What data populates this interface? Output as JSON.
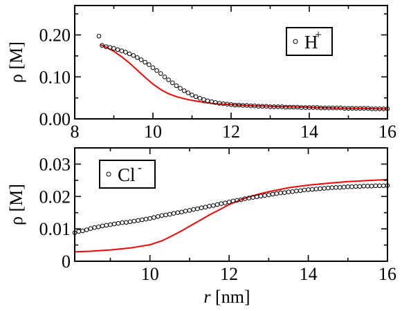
{
  "chart_data": [
    {
      "type": "scatter",
      "title": "",
      "xlabel": "",
      "ylabel": "ρ [M]",
      "xlim": [
        8,
        16
      ],
      "ylim": [
        0,
        0.27
      ],
      "xticks": [
        "8",
        "10",
        "12",
        "14",
        "16"
      ],
      "yticks": [
        "0.00",
        "0.10",
        "0.20"
      ],
      "legend": {
        "label": "H",
        "superscript": "+",
        "placement": "top-right"
      },
      "colors": {
        "markers": "#000000",
        "fit": "#ff0000"
      },
      "series": [
        {
          "name": "H+",
          "style": "open-circle",
          "x": [
            8.62,
            8.7,
            8.8,
            8.9,
            9.0,
            9.1,
            9.2,
            9.3,
            9.4,
            9.5,
            9.6,
            9.7,
            9.8,
            9.9,
            10.0,
            10.1,
            10.2,
            10.3,
            10.4,
            10.5,
            10.6,
            10.7,
            10.8,
            10.9,
            11.0,
            11.1,
            11.2,
            11.3,
            11.4,
            11.5,
            11.6,
            11.7,
            11.8,
            11.9,
            12.0,
            12.1,
            12.2,
            12.3,
            12.4,
            12.5,
            12.6,
            12.7,
            12.8,
            12.9,
            13.0,
            13.1,
            13.2,
            13.3,
            13.4,
            13.5,
            13.6,
            13.7,
            13.8,
            13.9,
            14.0,
            14.1,
            14.2,
            14.3,
            14.4,
            14.5,
            14.6,
            14.7,
            14.8,
            14.9,
            15.0,
            15.1,
            15.2,
            15.3,
            15.4,
            15.5,
            15.6,
            15.7,
            15.8,
            15.9,
            16.0
          ],
          "y": [
            0.197,
            0.175,
            0.172,
            0.17,
            0.168,
            0.165,
            0.162,
            0.159,
            0.155,
            0.151,
            0.146,
            0.141,
            0.135,
            0.129,
            0.122,
            0.115,
            0.108,
            0.1,
            0.093,
            0.086,
            0.079,
            0.073,
            0.067,
            0.062,
            0.057,
            0.053,
            0.049,
            0.046,
            0.043,
            0.041,
            0.039,
            0.037,
            0.036,
            0.035,
            0.034,
            0.033,
            0.033,
            0.032,
            0.032,
            0.031,
            0.031,
            0.03,
            0.03,
            0.03,
            0.029,
            0.029,
            0.029,
            0.029,
            0.028,
            0.028,
            0.028,
            0.028,
            0.027,
            0.027,
            0.027,
            0.027,
            0.027,
            0.026,
            0.026,
            0.026,
            0.026,
            0.026,
            0.026,
            0.025,
            0.025,
            0.025,
            0.025,
            0.025,
            0.025,
            0.025,
            0.024,
            0.024,
            0.024,
            0.024,
            0.024
          ]
        },
        {
          "name": "fit",
          "style": "line",
          "x": [
            8.65,
            8.8,
            9.0,
            9.2,
            9.4,
            9.6,
            9.8,
            10.0,
            10.2,
            10.4,
            10.6,
            10.8,
            11.0,
            11.2,
            11.4,
            11.6,
            11.8,
            12.0,
            12.2,
            12.4,
            12.6,
            12.8,
            13.0,
            13.4,
            13.8,
            14.2,
            14.6,
            15.0,
            15.4,
            15.8,
            16.0
          ],
          "y": [
            0.177,
            0.171,
            0.161,
            0.148,
            0.133,
            0.116,
            0.099,
            0.083,
            0.07,
            0.06,
            0.053,
            0.048,
            0.044,
            0.041,
            0.038,
            0.036,
            0.035,
            0.034,
            0.033,
            0.032,
            0.031,
            0.031,
            0.03,
            0.029,
            0.028,
            0.027,
            0.026,
            0.025,
            0.025,
            0.024,
            0.024
          ]
        }
      ]
    },
    {
      "type": "scatter",
      "title": "",
      "xlabel": "r [nm]",
      "ylabel": "ρ [M]",
      "xlim": [
        8.1,
        16
      ],
      "ylim": [
        0,
        0.035
      ],
      "xticks": [
        "10",
        "12",
        "14",
        "16"
      ],
      "yticks": [
        "0",
        "0.01",
        "0.02",
        "0.03"
      ],
      "legend": {
        "label": "Cl",
        "superscript": "-",
        "placement": "top-left"
      },
      "colors": {
        "markers": "#000000",
        "fit": "#ff0000"
      },
      "series": [
        {
          "name": "Cl-",
          "style": "open-circle",
          "x": [
            8.1,
            8.2,
            8.3,
            8.4,
            8.5,
            8.6,
            8.7,
            8.8,
            8.9,
            9.0,
            9.1,
            9.2,
            9.3,
            9.4,
            9.5,
            9.6,
            9.7,
            9.8,
            9.9,
            10.0,
            10.1,
            10.2,
            10.3,
            10.4,
            10.5,
            10.6,
            10.7,
            10.8,
            10.9,
            11.0,
            11.1,
            11.2,
            11.3,
            11.4,
            11.5,
            11.6,
            11.7,
            11.8,
            11.9,
            12.0,
            12.1,
            12.2,
            12.3,
            12.4,
            12.5,
            12.6,
            12.7,
            12.8,
            12.9,
            13.0,
            13.1,
            13.2,
            13.3,
            13.4,
            13.5,
            13.6,
            13.7,
            13.8,
            13.9,
            14.0,
            14.1,
            14.2,
            14.3,
            14.4,
            14.5,
            14.6,
            14.7,
            14.8,
            14.9,
            15.0,
            15.1,
            15.2,
            15.3,
            15.4,
            15.5,
            15.6,
            15.7,
            15.8,
            15.9,
            16.0
          ],
          "y": [
            0.0088,
            0.0092,
            0.0094,
            0.0097,
            0.0101,
            0.0104,
            0.0106,
            0.0109,
            0.0111,
            0.0113,
            0.0115,
            0.0117,
            0.0119,
            0.012,
            0.0122,
            0.0124,
            0.0126,
            0.0128,
            0.013,
            0.0132,
            0.0135,
            0.0138,
            0.0141,
            0.0143,
            0.0145,
            0.0148,
            0.015,
            0.0152,
            0.0155,
            0.0157,
            0.016,
            0.0162,
            0.0165,
            0.0167,
            0.017,
            0.0172,
            0.0175,
            0.0178,
            0.018,
            0.0183,
            0.0186,
            0.0188,
            0.019,
            0.0193,
            0.0195,
            0.0197,
            0.0199,
            0.0201,
            0.0203,
            0.0205,
            0.0207,
            0.0209,
            0.0211,
            0.0212,
            0.0214,
            0.0215,
            0.0217,
            0.0218,
            0.022,
            0.0221,
            0.0222,
            0.0223,
            0.0224,
            0.0225,
            0.0226,
            0.0227,
            0.0228,
            0.0228,
            0.0229,
            0.023,
            0.023,
            0.0231,
            0.0231,
            0.0232,
            0.0232,
            0.0232,
            0.0233,
            0.0233,
            0.0233,
            0.0234
          ]
        },
        {
          "name": "fit",
          "style": "line",
          "x": [
            8.1,
            8.5,
            9.0,
            9.5,
            10.0,
            10.3,
            10.5,
            10.8,
            11.0,
            11.3,
            11.5,
            11.8,
            12.0,
            12.3,
            12.5,
            12.8,
            13.0,
            13.3,
            13.5,
            14.0,
            14.5,
            15.0,
            15.5,
            16.0
          ],
          "y": [
            0.0029,
            0.0031,
            0.0035,
            0.0041,
            0.0051,
            0.0063,
            0.0075,
            0.0094,
            0.0108,
            0.0129,
            0.0143,
            0.0162,
            0.0175,
            0.019,
            0.0199,
            0.0209,
            0.0215,
            0.0222,
            0.0227,
            0.0235,
            0.0241,
            0.0246,
            0.0249,
            0.0252
          ]
        }
      ]
    }
  ]
}
